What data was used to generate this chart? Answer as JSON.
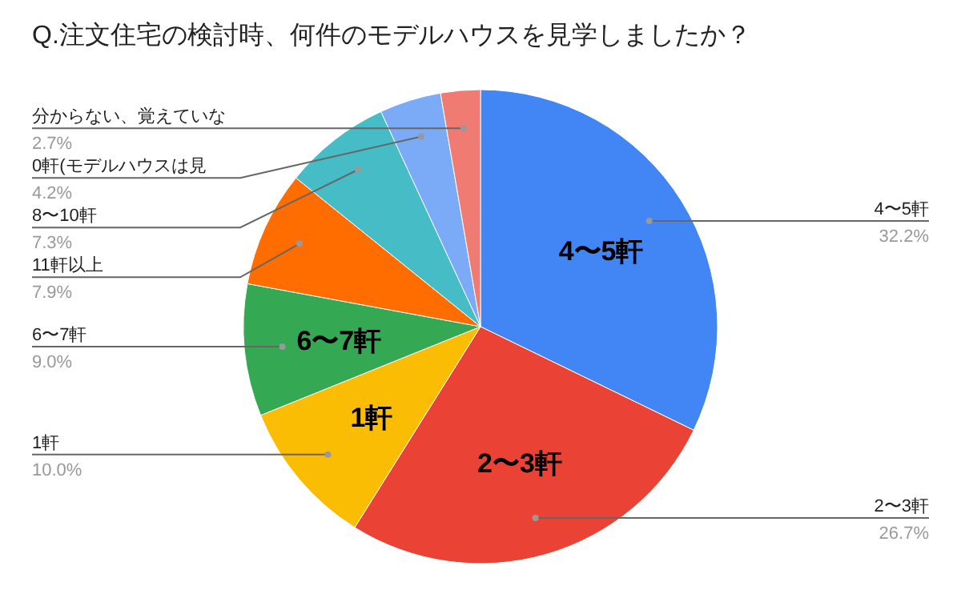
{
  "chart_data": {
    "type": "pie",
    "title": "Q.注文住宅の検討時、何件のモデルハウスを見学しましたか？",
    "categories": [
      "4〜5軒",
      "2〜3軒",
      "1軒",
      "6〜7軒",
      "11軒以上",
      "8〜10軒",
      "0軒(モデルハウスは見",
      "分からない、覚えていな"
    ],
    "values": [
      32.2,
      26.7,
      10.0,
      9.0,
      7.9,
      7.3,
      4.2,
      2.7
    ],
    "value_labels": [
      "32.2%",
      "26.7%",
      "10.0%",
      "9.0%",
      "7.9%",
      "7.3%",
      "4.2%",
      "2.7%"
    ],
    "colors": [
      "#4285f4",
      "#ea4335",
      "#fbbc04",
      "#34a853",
      "#ff6d01",
      "#46bdc6",
      "#7baaf7",
      "#f07b72"
    ]
  }
}
